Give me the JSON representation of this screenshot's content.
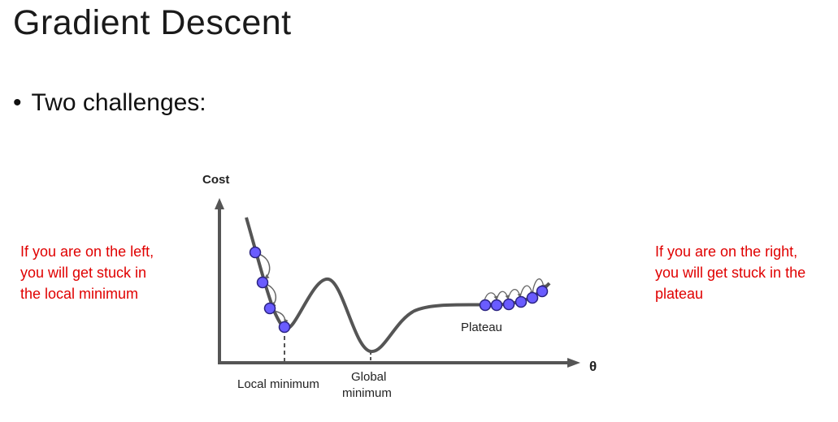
{
  "slide": {
    "title": "Gradient Descent",
    "bullet": "Two challenges:",
    "bullet_marker": "•"
  },
  "notes": {
    "left": [
      "If you are on the left,",
      "you will get stuck in",
      "the local minimum"
    ],
    "right": [
      "If you are on the right,",
      "you will get stuck in the",
      "plateau"
    ]
  },
  "diagram": {
    "y_axis_label": "Cost",
    "x_axis_label": "θ",
    "local_min_label": "Local minimum",
    "global_min_label_line1": "Global",
    "global_min_label_line2": "minimum",
    "plateau_label": "Plateau",
    "left_ball_count": 4,
    "plateau_ball_count": 6
  },
  "colors": {
    "note_text": "#e00000",
    "ball": "#6a5cff",
    "curve": "#555555",
    "axis": "#555555"
  }
}
